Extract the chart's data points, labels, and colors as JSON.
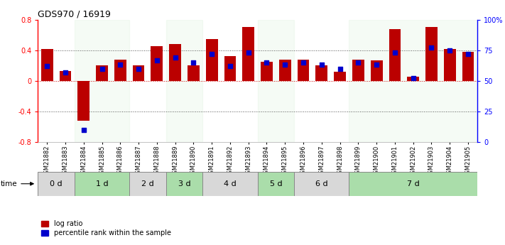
{
  "title": "GDS970 / 16919",
  "samples": [
    "GSM21882",
    "GSM21883",
    "GSM21884",
    "GSM21885",
    "GSM21886",
    "GSM21887",
    "GSM21888",
    "GSM21889",
    "GSM21890",
    "GSM21891",
    "GSM21892",
    "GSM21893",
    "GSM21894",
    "GSM21895",
    "GSM21896",
    "GSM21897",
    "GSM21898",
    "GSM21899",
    "GSM21900",
    "GSM21901",
    "GSM21902",
    "GSM21903",
    "GSM21904",
    "GSM21905"
  ],
  "log_ratio": [
    0.42,
    0.13,
    -0.52,
    0.2,
    0.28,
    0.2,
    0.45,
    0.48,
    0.2,
    0.55,
    0.32,
    0.7,
    0.25,
    0.28,
    0.28,
    0.2,
    0.12,
    0.28,
    0.27,
    0.68,
    0.05,
    0.7,
    0.42,
    0.38
  ],
  "percentile": [
    62,
    57,
    10,
    60,
    63,
    60,
    67,
    69,
    65,
    72,
    62,
    73,
    65,
    63,
    65,
    63,
    60,
    65,
    63,
    73,
    52,
    77,
    75,
    72
  ],
  "time_groups": [
    {
      "label": "0 d",
      "start": 0,
      "end": 2,
      "color": "#d8d8d8"
    },
    {
      "label": "1 d",
      "start": 2,
      "end": 5,
      "color": "#aaddaa"
    },
    {
      "label": "2 d",
      "start": 5,
      "end": 7,
      "color": "#d8d8d8"
    },
    {
      "label": "3 d",
      "start": 7,
      "end": 9,
      "color": "#aaddaa"
    },
    {
      "label": "4 d",
      "start": 9,
      "end": 12,
      "color": "#d8d8d8"
    },
    {
      "label": "5 d",
      "start": 12,
      "end": 14,
      "color": "#aaddaa"
    },
    {
      "label": "6 d",
      "start": 14,
      "end": 17,
      "color": "#d8d8d8"
    },
    {
      "label": "7 d",
      "start": 17,
      "end": 24,
      "color": "#aaddaa"
    }
  ],
  "bar_color": "#bb0000",
  "dot_color": "#0000cc",
  "ylim": [
    -0.8,
    0.8
  ],
  "y2lim": [
    0,
    100
  ],
  "yticks": [
    -0.8,
    -0.4,
    0.0,
    0.4,
    0.8
  ],
  "y2ticks": [
    0,
    25,
    50,
    75,
    100
  ],
  "y2ticklabels": [
    "0",
    "25",
    "50",
    "75",
    "100%"
  ]
}
